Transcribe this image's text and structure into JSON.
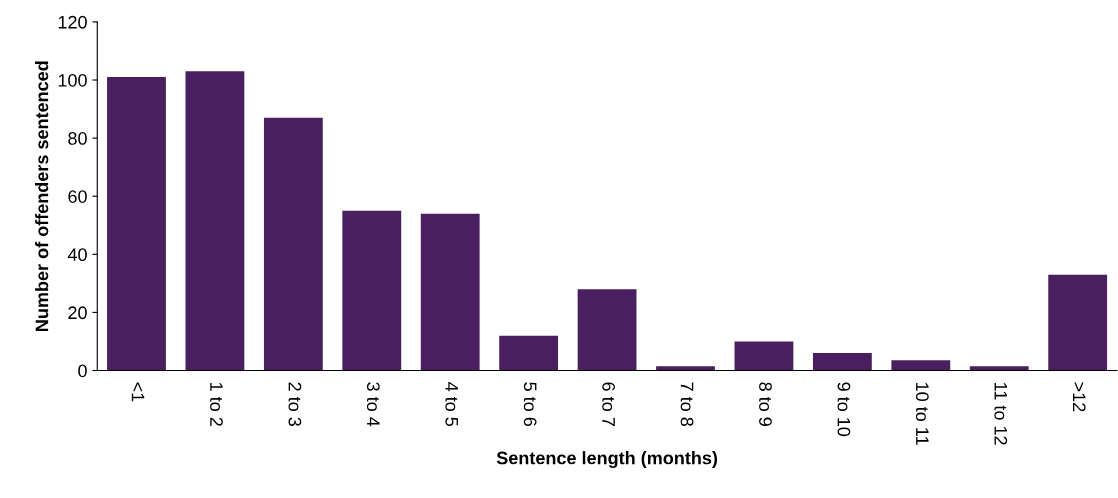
{
  "chart_data": {
    "type": "bar",
    "categories": [
      "<1",
      "1 to 2",
      "2 to 3",
      "3 to 4",
      "4 to 5",
      "5 to 6",
      "6 to 7",
      "7 to 8",
      "8 to 9",
      "9 to 10",
      "10 to 11",
      "11 to 12",
      ">12"
    ],
    "values": [
      101,
      103,
      87,
      55,
      54,
      12,
      28,
      1.5,
      10,
      6,
      3.5,
      1.5,
      33
    ],
    "color": "#4a1f60",
    "xlabel": "Sentence length (months)",
    "ylabel": "Number of offenders sentenced",
    "ylim": [
      0,
      120
    ],
    "yticks": [
      0,
      20,
      40,
      60,
      80,
      100,
      120
    ],
    "grid": false,
    "legend": false
  }
}
